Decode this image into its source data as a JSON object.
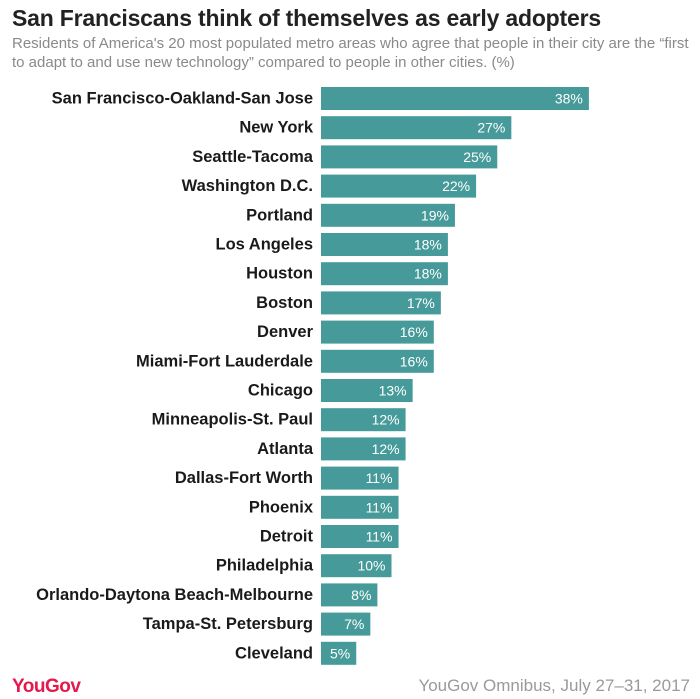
{
  "title": "San Franciscans think of themselves as early adopters",
  "subtitle": "Residents of America's 20 most populated metro areas who agree that people in their city are the “first to adapt to and use new technology” compared to people in other cities. (%)",
  "footer": {
    "logo": "YouGov",
    "source": "YouGov Omnibus, July 27–31, 2017"
  },
  "colors": {
    "bar": "#469b9a",
    "bar_label": "#ffffff",
    "category_label": "#1a1a1a"
  },
  "chart_data": {
    "type": "bar",
    "orientation": "horizontal",
    "categories": [
      "San Francisco-Oakland-San Jose",
      "New York",
      "Seattle-Tacoma",
      "Washington D.C.",
      "Portland",
      "Los Angeles",
      "Houston",
      "Boston",
      "Denver",
      "Miami-Fort Lauderdale",
      "Chicago",
      "Minneapolis-St. Paul",
      "Atlanta",
      "Dallas-Fort Worth",
      "Phoenix",
      "Detroit",
      "Philadelphia",
      "Orlando-Daytona Beach-Melbourne",
      "Tampa-St. Petersburg",
      "Cleveland"
    ],
    "values": [
      38,
      27,
      25,
      22,
      19,
      18,
      18,
      17,
      16,
      16,
      13,
      12,
      12,
      11,
      11,
      11,
      10,
      8,
      7,
      5
    ],
    "value_suffix": "%",
    "xlim": [
      0,
      38
    ],
    "grid": false,
    "legend": "none"
  }
}
